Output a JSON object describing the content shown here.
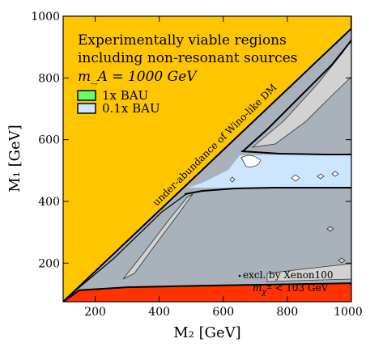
{
  "chart_data": {
    "type": "area",
    "xlabel": "M₂ [GeV]",
    "ylabel": "M₁ [GeV]",
    "xlim": [
      100,
      1000
    ],
    "ylim": [
      75,
      1000
    ],
    "xticks": [
      200,
      400,
      600,
      800,
      1000
    ],
    "yticks": [
      200,
      400,
      600,
      800,
      1000
    ],
    "legend_title_lines": [
      "Experimentally viable regions",
      "including non-resonant sources",
      "m_A = 1000 GeV"
    ],
    "legend_position": "top-left",
    "legend": [
      {
        "label": "1x BAU",
        "color": "#66ff66"
      },
      {
        "label": "0.1x BAU",
        "color": "#cce6ff"
      }
    ],
    "annotations": {
      "diagonal": "under-abundance of Wino-like DM",
      "xenon": "excl. by Xenon100",
      "chargino_prefix": "m",
      "chargino_sub": "χ",
      "chargino_sup": "±",
      "chargino_suffix": "< 103 GeV"
    },
    "colors": {
      "underabundance": "#ffc600",
      "chargino_excluded": "#ff3300",
      "gray_region": "#a9b1bb",
      "light_gray": "#d2d2d2",
      "light_blue": "#cce6ff",
      "green": "#66ff66"
    },
    "regions": {
      "upper_boundary_diagonal": [
        [
          100,
          75
        ],
        [
          1000,
          960
        ]
      ],
      "chargino_boundary": [
        [
          100,
          75
        ],
        [
          150,
          112
        ],
        [
          300,
          122
        ],
        [
          600,
          128
        ],
        [
          1000,
          135
        ]
      ],
      "lower_light_blue_band_top": [
        [
          500,
          420
        ],
        [
          600,
          440
        ],
        [
          700,
          443
        ],
        [
          1000,
          443
        ]
      ],
      "upper_light_blue_band": [
        [
          665,
          555
        ],
        [
          1000,
          551
        ]
      ],
      "lower_light_blue_band_bottom": [
        [
          680,
          445
        ],
        [
          1000,
          445
        ]
      ]
    }
  }
}
